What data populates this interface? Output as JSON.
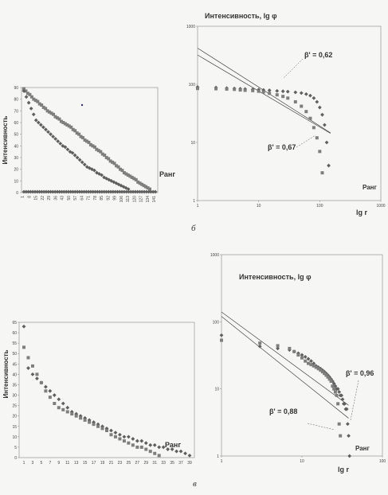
{
  "captions": {
    "b": "б",
    "v": "в"
  },
  "chart_data": [
    {
      "id": "b_left",
      "type": "scatter",
      "ylabel": "Интенсивность",
      "annotation": "Ранг",
      "ylim": [
        0,
        90
      ],
      "yticks": [
        "0",
        "10",
        "20",
        "30",
        "40",
        "50",
        "60",
        "70",
        "80",
        "90"
      ],
      "xticks": [
        "1",
        "8",
        "15",
        "22",
        "29",
        "36",
        "43",
        "50",
        "57",
        "64",
        "71",
        "78",
        "85",
        "92",
        "99",
        "106",
        "113",
        "120",
        "127",
        "134",
        "141"
      ],
      "series": [
        {
          "values": [
            89,
            87,
            85,
            84,
            82,
            80,
            79,
            78,
            76,
            75,
            73,
            72,
            70,
            69,
            68,
            67,
            65,
            64,
            63,
            61,
            60,
            59,
            58,
            57,
            56,
            54,
            53,
            51,
            50,
            48,
            47,
            45,
            44,
            43,
            41,
            40,
            39,
            37,
            36,
            35,
            33,
            32,
            30,
            29,
            27,
            26,
            25,
            23,
            22,
            20,
            19,
            17,
            16,
            15,
            14,
            13,
            12,
            11,
            9,
            8,
            7,
            6,
            5,
            4,
            3
          ]
        },
        {
          "values": [
            87,
            82,
            77,
            72,
            67,
            62,
            60,
            58,
            56,
            54,
            52,
            50,
            48,
            46,
            44,
            42,
            40,
            39,
            37,
            35,
            34,
            32,
            30,
            28,
            26,
            24,
            22,
            21,
            20,
            19,
            17,
            16,
            15,
            13,
            12,
            11,
            10,
            9,
            8,
            7,
            6,
            5,
            4,
            3
          ]
        }
      ]
    },
    {
      "id": "b_right",
      "type": "scatter",
      "title": "Интенсивность, lg φ",
      "xlabel": "lg r",
      "xscale": "log",
      "yscale": "log",
      "xlim": [
        1,
        1000
      ],
      "ylim": [
        1,
        1000
      ],
      "xticks": [
        "1",
        "10",
        "100",
        "1000"
      ],
      "yticks": [
        "1",
        "10",
        "100",
        "1000"
      ],
      "annotations": [
        "β' = 0,62",
        "β' = 0,67"
      ],
      "series": [
        {
          "x": [
            1,
            2,
            3,
            4,
            5,
            6,
            8,
            10,
            12,
            15,
            20,
            25,
            30,
            40,
            50,
            60,
            70,
            80,
            90,
            100,
            110,
            120,
            130,
            140
          ],
          "y": [
            90,
            88,
            86,
            85,
            84,
            83,
            82,
            81,
            80,
            79,
            77,
            76,
            75,
            73,
            71,
            68,
            64,
            58,
            50,
            40,
            30,
            20,
            10,
            4
          ]
        },
        {
          "x": [
            1,
            2,
            3,
            4,
            5,
            6,
            8,
            10,
            12,
            15,
            20,
            25,
            30,
            40,
            50,
            60,
            70,
            80,
            90,
            100,
            110
          ],
          "y": [
            85,
            84,
            83,
            82,
            80,
            79,
            78,
            76,
            74,
            70,
            66,
            62,
            58,
            50,
            42,
            34,
            26,
            18,
            12,
            7,
            3
          ]
        }
      ],
      "fit_lines": [
        {
          "slope": -0.62,
          "intercept_y_at_1": 320
        },
        {
          "slope": -0.67,
          "intercept_y_at_1": 420
        }
      ]
    },
    {
      "id": "v_left",
      "type": "scatter",
      "ylabel": "Интенсивность",
      "annotation": "Ранг",
      "ylim": [
        0,
        65
      ],
      "yticks": [
        "0",
        "5",
        "10",
        "15",
        "20",
        "25",
        "30",
        "35",
        "40",
        "45",
        "50",
        "55",
        "60",
        "65"
      ],
      "xticks": [
        "1",
        "3",
        "5",
        "7",
        "9",
        "11",
        "13",
        "15",
        "17",
        "19",
        "21",
        "23",
        "25",
        "27",
        "29",
        "31",
        "33",
        "35",
        "37",
        "39"
      ],
      "series": [
        {
          "x": [
            1,
            2,
            3,
            4,
            5,
            6,
            7,
            8,
            9,
            10,
            11,
            12,
            13,
            14,
            15,
            16,
            17,
            18,
            19,
            20,
            21,
            22,
            23,
            24,
            25,
            26,
            27,
            28,
            29,
            30,
            31,
            32,
            33,
            34,
            35,
            36,
            37,
            38,
            39
          ],
          "y": [
            63,
            43,
            40,
            38,
            36,
            34,
            32,
            30,
            28,
            26,
            24,
            22,
            21,
            20,
            19,
            18,
            17,
            16,
            15,
            14,
            13,
            12,
            11,
            10,
            10,
            9,
            8,
            8,
            7,
            6,
            6,
            5,
            5,
            4,
            4,
            3,
            3,
            2,
            1
          ]
        },
        {
          "x": [
            1,
            2,
            3,
            4,
            5,
            6,
            7,
            8,
            9,
            10,
            11,
            12,
            13,
            14,
            15,
            16,
            17,
            18,
            19,
            20,
            21,
            22,
            23,
            24,
            25,
            26,
            27,
            28,
            29,
            30,
            31,
            32
          ],
          "y": [
            53,
            48,
            44,
            40,
            36,
            32,
            29,
            26,
            24,
            23,
            22,
            21,
            20,
            19,
            18,
            17,
            16,
            15,
            14,
            13,
            11,
            10,
            9,
            8,
            7,
            6,
            5,
            5,
            4,
            3,
            2,
            1
          ]
        }
      ]
    },
    {
      "id": "v_right",
      "type": "scatter",
      "title": "Интенсивность, lg φ",
      "xlabel": "lg r",
      "annotation": "Ранг",
      "xscale": "log",
      "yscale": "log",
      "xlim": [
        1,
        100
      ],
      "ylim": [
        1,
        1000
      ],
      "xticks": [
        "1",
        "10",
        "100"
      ],
      "yticks": [
        "1",
        "10",
        "100",
        "1000"
      ],
      "annotations": [
        "β' = 0,96",
        "β' = 0,88"
      ],
      "series": [
        {
          "x": [
            1,
            3,
            5,
            7,
            8,
            9,
            10,
            11,
            12,
            13,
            14,
            15,
            16,
            17,
            18,
            19,
            20,
            21,
            22,
            23,
            24,
            25,
            26,
            27,
            28,
            29,
            30,
            31,
            32,
            33,
            34,
            35,
            36,
            37,
            38,
            39
          ],
          "y": [
            63,
            43,
            40,
            38,
            36,
            34,
            32,
            30,
            28,
            26,
            24,
            22,
            21,
            20,
            19,
            18,
            17,
            16,
            15,
            14,
            13,
            12,
            11,
            10,
            10,
            9,
            8,
            8,
            7,
            6,
            6,
            5,
            5,
            3,
            2,
            1
          ]
        },
        {
          "x": [
            1,
            3,
            5,
            7,
            8,
            9,
            10,
            11,
            12,
            13,
            14,
            15,
            16,
            17,
            18,
            19,
            20,
            21,
            22,
            23,
            24,
            25,
            26,
            27,
            28,
            29,
            30
          ],
          "y": [
            53,
            48,
            44,
            40,
            36,
            32,
            29,
            26,
            24,
            23,
            22,
            21,
            20,
            19,
            18,
            17,
            16,
            15,
            14,
            13,
            11,
            10,
            9,
            8,
            6,
            3,
            2
          ]
        }
      ],
      "fit_lines": [
        {
          "slope": -0.96,
          "intercept_y_at_1": 120
        },
        {
          "slope": -0.88,
          "intercept_y_at_1": 140
        }
      ]
    }
  ]
}
